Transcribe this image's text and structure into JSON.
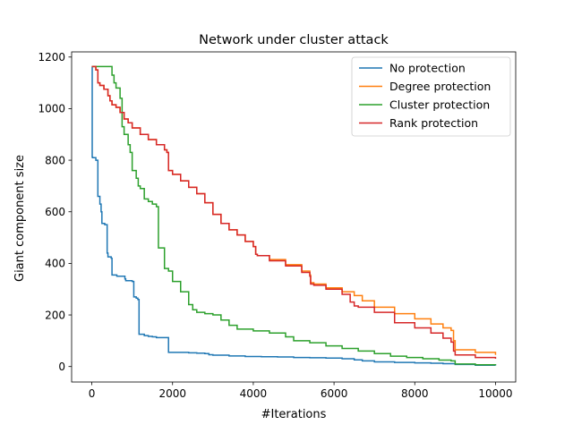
{
  "chart_data": {
    "type": "line",
    "title": "Network under cluster attack",
    "xlabel": "#Iterations",
    "ylabel": "Giant component size",
    "xlim": [
      -500,
      10500
    ],
    "ylim": [
      -60,
      1220
    ],
    "xticks": [
      0,
      2000,
      4000,
      6000,
      8000,
      10000
    ],
    "yticks": [
      0,
      200,
      400,
      600,
      800,
      1000,
      1200
    ],
    "grid": false,
    "legend_position": "top-right",
    "step": true,
    "series": [
      {
        "name": "No protection",
        "color": "#1f77b4",
        "x": [
          0,
          10,
          20,
          100,
          150,
          200,
          230,
          250,
          320,
          380,
          400,
          480,
          500,
          600,
          620,
          820,
          840,
          1000,
          1040,
          1100,
          1140,
          1170,
          1200,
          1300,
          1400,
          1500,
          1600,
          1700,
          1860,
          1900,
          2000,
          2400,
          2600,
          2800,
          2900,
          3000,
          3400,
          3800,
          4200,
          4600,
          5000,
          5400,
          5800,
          6200,
          6500,
          6700,
          7000,
          7500,
          8000,
          8400,
          8700,
          9000,
          9500,
          10000
        ],
        "y": [
          1163,
          812,
          810,
          800,
          660,
          630,
          600,
          555,
          550,
          440,
          425,
          420,
          355,
          355,
          350,
          340,
          333,
          330,
          270,
          265,
          260,
          125,
          125,
          120,
          117,
          115,
          112,
          112,
          112,
          55,
          55,
          53,
          52,
          50,
          46,
          44,
          41,
          39,
          38,
          37,
          35,
          34,
          33,
          30,
          26,
          22,
          18,
          16,
          14,
          13,
          11,
          8,
          5,
          4
        ]
      },
      {
        "name": "Degree protection",
        "color": "#ff7f0e",
        "x": [
          0,
          100,
          150,
          200,
          300,
          400,
          450,
          500,
          600,
          700,
          800,
          900,
          1000,
          1200,
          1400,
          1600,
          1800,
          1860,
          1900,
          2000,
          2200,
          2400,
          2600,
          2800,
          3000,
          3200,
          3400,
          3600,
          3800,
          4000,
          4060,
          4100,
          4400,
          4800,
          5200,
          5400,
          5420,
          5500,
          5800,
          6200,
          6500,
          6700,
          7000,
          7500,
          8000,
          8400,
          8700,
          8900,
          8960,
          9000,
          9500,
          10000
        ],
        "y": [
          1163,
          1150,
          1100,
          1090,
          1075,
          1050,
          1030,
          1015,
          1005,
          985,
          960,
          945,
          925,
          900,
          880,
          860,
          840,
          830,
          760,
          745,
          720,
          695,
          670,
          635,
          590,
          555,
          530,
          510,
          485,
          465,
          435,
          430,
          415,
          395,
          370,
          355,
          325,
          320,
          305,
          290,
          275,
          255,
          230,
          205,
          185,
          165,
          150,
          140,
          100,
          65,
          55,
          45
        ]
      },
      {
        "name": "Cluster protection",
        "color": "#2ca02c",
        "x": [
          0,
          100,
          200,
          300,
          450,
          500,
          550,
          600,
          700,
          750,
          800,
          900,
          950,
          1000,
          1100,
          1150,
          1200,
          1300,
          1400,
          1500,
          1600,
          1650,
          1800,
          1900,
          2000,
          2200,
          2400,
          2500,
          2600,
          2800,
          3000,
          3200,
          3400,
          3600,
          4000,
          4400,
          4800,
          5000,
          5400,
          5800,
          6200,
          6600,
          7000,
          7400,
          7800,
          8200,
          8600,
          8900,
          9000,
          9500,
          10000
        ],
        "y": [
          1163,
          1163,
          1163,
          1163,
          1163,
          1130,
          1100,
          1080,
          1040,
          930,
          900,
          860,
          830,
          760,
          730,
          700,
          690,
          650,
          640,
          630,
          620,
          460,
          380,
          370,
          330,
          290,
          240,
          220,
          210,
          205,
          200,
          180,
          160,
          145,
          138,
          130,
          115,
          100,
          92,
          80,
          70,
          60,
          50,
          40,
          35,
          30,
          25,
          22,
          10,
          7,
          5
        ]
      },
      {
        "name": "Rank protection",
        "color": "#d62728",
        "x": [
          0,
          100,
          150,
          200,
          300,
          400,
          450,
          500,
          600,
          700,
          800,
          900,
          1000,
          1200,
          1400,
          1600,
          1800,
          1860,
          1900,
          2000,
          2200,
          2400,
          2600,
          2800,
          3000,
          3200,
          3400,
          3600,
          3800,
          4000,
          4060,
          4100,
          4400,
          4800,
          5200,
          5400,
          5420,
          5500,
          5800,
          6200,
          6400,
          6500,
          6600,
          7000,
          7500,
          8000,
          8400,
          8700,
          8900,
          8960,
          9000,
          9500,
          10000
        ],
        "y": [
          1163,
          1150,
          1100,
          1090,
          1075,
          1050,
          1030,
          1015,
          1005,
          985,
          960,
          945,
          925,
          900,
          880,
          860,
          840,
          830,
          760,
          745,
          720,
          695,
          670,
          635,
          590,
          555,
          530,
          510,
          485,
          465,
          435,
          430,
          410,
          390,
          365,
          350,
          320,
          315,
          300,
          280,
          250,
          235,
          230,
          210,
          170,
          150,
          130,
          110,
          95,
          60,
          45,
          35,
          30
        ]
      }
    ]
  }
}
